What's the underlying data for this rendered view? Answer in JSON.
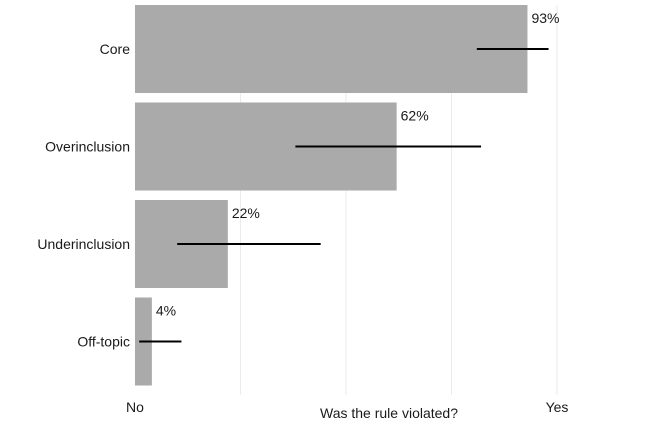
{
  "chart_data": {
    "type": "bar",
    "orientation": "horizontal",
    "categories": [
      "Core",
      "Overinclusion",
      "Underinclusion",
      "Off-topic"
    ],
    "values": [
      93,
      62,
      22,
      4
    ],
    "value_labels": [
      "93%",
      "62%",
      "22%",
      "4%"
    ],
    "error_bars": [
      {
        "low": 81,
        "high": 98
      },
      {
        "low": 38,
        "high": 82
      },
      {
        "low": 10,
        "high": 44
      },
      {
        "low": 1,
        "high": 11
      }
    ],
    "xlabel": "Was the rule violated?",
    "xlim": [
      0,
      100
    ],
    "x_ticks": [
      {
        "value": 0,
        "label": "No"
      },
      {
        "value": 100,
        "label": "Yes"
      }
    ],
    "gridlines": [
      25,
      50,
      75,
      100
    ],
    "grid": true,
    "legend": "none",
    "colors": {
      "bar": "#aaaaaa",
      "error_bar": "#000000",
      "grid": "#ebebeb",
      "text": "#1a1a1a"
    }
  }
}
